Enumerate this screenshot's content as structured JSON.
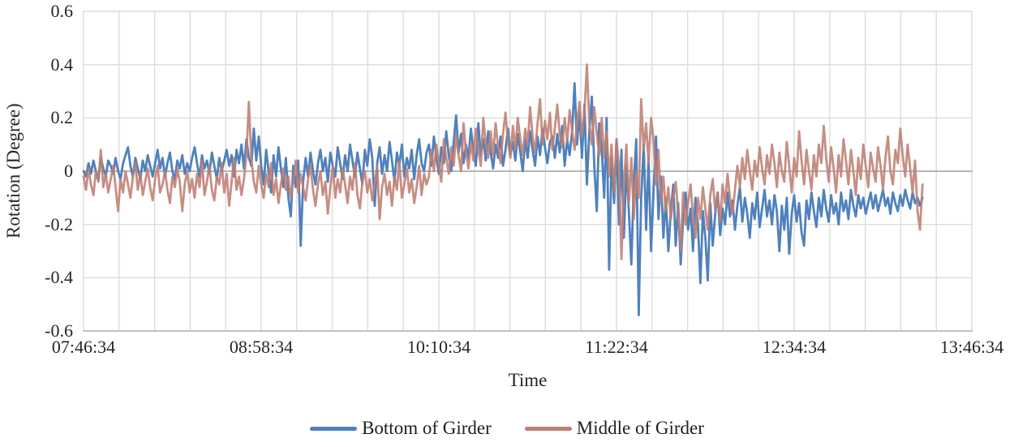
{
  "chart_data": {
    "type": "line",
    "title": "",
    "xlabel": "Time",
    "ylabel": "Rotation (Degree)",
    "x_axis": {
      "tick_labels": [
        "07:46:34",
        "08:58:34",
        "10:10:34",
        "11:22:34",
        "12:34:34",
        "13:46:34"
      ],
      "total_minutes": 360,
      "major_minutes": 72,
      "minor_minutes": 14.4
    },
    "y_axis": {
      "min": -0.6,
      "max": 0.6,
      "step": 0.2,
      "tick_labels": [
        "0.6",
        "0.4",
        "0.2",
        "0",
        "-0.2",
        "-0.4",
        "-0.6"
      ]
    },
    "grid": {
      "color": "#DCDCDC",
      "zero_color": "#ADADAD",
      "axis_color": "#C2C2C2"
    },
    "legend_position": "bottom",
    "x_step_minutes": 1,
    "series": [
      {
        "name": "Bottom of Girder",
        "color": "#4F81BD",
        "opacity": 1,
        "values": [
          0.0,
          -0.02,
          0.03,
          -0.01,
          0.04,
          0.0,
          -0.03,
          0.05,
          0.01,
          -0.02,
          0.04,
          0.02,
          -0.01,
          0.05,
          0.0,
          -0.03,
          0.03,
          0.06,
          0.09,
          0.02,
          -0.02,
          0.05,
          0.01,
          -0.03,
          0.04,
          0.0,
          0.06,
          0.02,
          -0.02,
          0.03,
          0.08,
          0.01,
          0.05,
          -0.02,
          0.03,
          0.07,
          0.0,
          -0.03,
          0.04,
          0.01,
          0.06,
          -0.01,
          0.03,
          0.0,
          0.05,
          0.09,
          0.03,
          -0.02,
          0.06,
          0.01,
          0.04,
          -0.01,
          0.07,
          0.02,
          -0.03,
          0.05,
          0.0,
          0.04,
          0.08,
          0.02,
          0.06,
          -0.02,
          0.08,
          0.03,
          0.1,
          0.01,
          0.12,
          0.05,
          0.02,
          0.16,
          0.04,
          0.13,
          0.02,
          -0.05,
          0.08,
          0.0,
          -0.08,
          0.06,
          -0.02,
          0.09,
          0.01,
          -0.06,
          0.05,
          -0.1,
          -0.17,
          0.02,
          -0.06,
          0.04,
          -0.28,
          -0.04,
          0.05,
          -0.02,
          0.07,
          0.0,
          -0.05,
          0.03,
          0.08,
          0.0,
          0.05,
          -0.04,
          0.07,
          0.02,
          -0.02,
          0.09,
          0.03,
          -0.03,
          0.06,
          0.0,
          0.1,
          0.04,
          -0.02,
          0.07,
          0.01,
          -0.05,
          0.08,
          0.02,
          0.12,
          0.05,
          -0.13,
          0.03,
          0.09,
          -0.01,
          0.06,
          0.0,
          0.11,
          0.04,
          -0.04,
          0.07,
          0.02,
          0.1,
          -0.02,
          0.05,
          0.01,
          0.08,
          -0.03,
          0.06,
          0.12,
          0.03,
          0.0,
          0.07,
          0.1,
          0.02,
          0.13,
          0.05,
          -0.01,
          0.09,
          0.03,
          0.15,
          0.06,
          0.0,
          0.11,
          0.21,
          0.07,
          0.14,
          0.03,
          0.1,
          0.05,
          0.16,
          0.08,
          0.02,
          0.18,
          0.06,
          0.12,
          0.04,
          0.15,
          0.07,
          0.01,
          0.1,
          0.05,
          0.13,
          0.02,
          0.08,
          0.16,
          0.06,
          0.11,
          0.04,
          0.14,
          0.07,
          0.0,
          0.12,
          0.05,
          0.15,
          0.08,
          0.02,
          0.13,
          0.06,
          0.16,
          0.09,
          0.03,
          0.11,
          0.13,
          0.05,
          0.14,
          0.07,
          0.17,
          0.02,
          0.12,
          0.06,
          0.15,
          0.33,
          0.1,
          0.22,
          0.05,
          0.25,
          -0.05,
          0.15,
          0.28,
          0.02,
          -0.15,
          0.18,
          0.08,
          -0.1,
          0.2,
          -0.37,
          0.05,
          -0.12,
          0.12,
          -0.2,
          0.08,
          -0.25,
          0.02,
          -0.15,
          -0.35,
          -0.05,
          0.12,
          -0.54,
          -0.1,
          0.1,
          -0.22,
          0.05,
          -0.3,
          -0.08,
          0.13,
          -0.18,
          -0.02,
          -0.25,
          -0.1,
          -0.3,
          -0.15,
          -0.05,
          -0.28,
          -0.12,
          -0.35,
          -0.18,
          -0.08,
          -0.22,
          -0.14,
          -0.3,
          -0.1,
          -0.2,
          -0.42,
          -0.15,
          -0.25,
          -0.41,
          -0.12,
          -0.28,
          -0.16,
          -0.08,
          -0.24,
          -0.14,
          -0.2,
          -0.08,
          -0.17,
          -0.11,
          -0.22,
          -0.13,
          -0.06,
          -0.19,
          -0.1,
          -0.16,
          -0.25,
          -0.12,
          -0.18,
          -0.08,
          -0.21,
          -0.14,
          -0.07,
          -0.17,
          -0.11,
          -0.2,
          -0.09,
          -0.15,
          -0.3,
          -0.13,
          -0.22,
          -0.1,
          -0.31,
          -0.16,
          -0.09,
          -0.19,
          -0.12,
          -0.23,
          -0.28,
          -0.11,
          -0.18,
          -0.08,
          -0.15,
          -0.21,
          -0.1,
          -0.17,
          -0.07,
          -0.14,
          -0.19,
          -0.09,
          -0.16,
          -0.12,
          -0.2,
          -0.08,
          -0.15,
          -0.11,
          -0.18,
          -0.07,
          -0.13,
          -0.17,
          -0.09,
          -0.14,
          -0.1,
          -0.16,
          -0.12,
          -0.08,
          -0.14,
          -0.09,
          -0.15,
          -0.11,
          -0.07,
          -0.13,
          -0.1,
          -0.16,
          -0.08,
          -0.12,
          -0.15,
          -0.09,
          -0.13,
          -0.07,
          -0.11,
          -0.14,
          -0.08,
          -0.12,
          -0.1,
          -0.13,
          -0.1
        ]
      },
      {
        "name": "Middle of Girder",
        "color": "#BE7E72",
        "opacity": 0.88,
        "values": [
          -0.02,
          -0.07,
          0.01,
          -0.05,
          -0.09,
          0.0,
          -0.04,
          0.08,
          -0.06,
          -0.01,
          -0.08,
          -0.03,
          0.02,
          -0.06,
          -0.15,
          -0.03,
          -0.08,
          0.0,
          -0.05,
          -0.1,
          -0.02,
          0.03,
          -0.07,
          -0.01,
          -0.09,
          -0.04,
          0.01,
          -0.06,
          -0.11,
          -0.03,
          0.02,
          -0.08,
          -0.05,
          0.0,
          -0.07,
          -0.12,
          -0.02,
          -0.06,
          0.01,
          -0.04,
          -0.15,
          -0.05,
          0.0,
          -0.08,
          -0.03,
          -0.1,
          -0.01,
          -0.06,
          0.04,
          -0.09,
          -0.04,
          0.02,
          -0.07,
          -0.11,
          -0.02,
          -0.05,
          0.03,
          -0.08,
          -0.01,
          -0.13,
          -0.04,
          0.05,
          -0.07,
          -0.02,
          -0.09,
          -0.03,
          0.06,
          0.26,
          0.05,
          -0.04,
          -0.08,
          0.02,
          -0.05,
          -0.1,
          -0.01,
          -0.06,
          0.03,
          -0.09,
          -0.03,
          -0.12,
          -0.05,
          0.01,
          -0.07,
          -0.02,
          -0.1,
          -0.04,
          0.04,
          -0.08,
          -0.01,
          -0.06,
          -0.11,
          -0.03,
          0.02,
          -0.07,
          -0.13,
          -0.05,
          0.0,
          -0.09,
          -0.04,
          -0.16,
          -0.06,
          0.02,
          -0.1,
          -0.03,
          -0.08,
          0.01,
          -0.05,
          -0.12,
          -0.02,
          -0.07,
          0.03,
          -0.09,
          -0.14,
          -0.04,
          0.0,
          -0.08,
          -0.03,
          -0.11,
          -0.05,
          0.02,
          -0.18,
          -0.06,
          -0.01,
          -0.09,
          -0.04,
          -0.13,
          -0.02,
          -0.07,
          0.04,
          -0.1,
          -0.05,
          0.01,
          -0.08,
          -0.03,
          -0.12,
          -0.06,
          0.02,
          -0.09,
          -0.01,
          -0.05,
          -0.02,
          0.08,
          0.0,
          0.1,
          0.03,
          -0.04,
          0.12,
          0.05,
          -0.01,
          0.09,
          0.02,
          0.14,
          0.06,
          0.0,
          0.18,
          0.07,
          0.01,
          0.11,
          0.04,
          0.16,
          0.08,
          0.02,
          0.2,
          0.1,
          0.05,
          0.15,
          0.06,
          0.18,
          0.09,
          0.03,
          0.14,
          0.22,
          0.11,
          0.05,
          0.17,
          0.08,
          0.2,
          0.12,
          0.06,
          0.16,
          0.1,
          0.24,
          0.13,
          0.07,
          0.18,
          0.27,
          0.1,
          0.19,
          0.12,
          0.22,
          0.08,
          0.16,
          0.25,
          0.14,
          0.09,
          0.2,
          0.11,
          0.23,
          0.15,
          0.08,
          0.18,
          0.26,
          0.13,
          0.22,
          0.4,
          0.18,
          0.1,
          0.24,
          0.14,
          0.06,
          0.2,
          0.05,
          0.15,
          -0.02,
          0.1,
          -0.08,
          0.12,
          0.02,
          -0.33,
          -0.05,
          0.1,
          -0.12,
          0.05,
          -0.18,
          0.0,
          -0.1,
          0.27,
          0.08,
          0.18,
          0.03,
          0.2,
          0.12,
          -0.05,
          0.08,
          -0.12,
          -0.02,
          -0.15,
          -0.06,
          -0.18,
          -0.1,
          -0.04,
          -0.16,
          -0.3,
          -0.08,
          -0.2,
          -0.12,
          -0.05,
          -0.17,
          -0.25,
          -0.1,
          -0.18,
          -0.06,
          -0.14,
          -0.22,
          -0.09,
          -0.03,
          -0.15,
          -0.08,
          -0.19,
          -0.05,
          -0.12,
          -0.01,
          -0.1,
          -0.16,
          -0.07,
          0.02,
          -0.06,
          0.05,
          -0.03,
          0.08,
          0.0,
          -0.07,
          0.04,
          -0.02,
          0.09,
          0.01,
          -0.05,
          0.06,
          -0.01,
          0.1,
          0.03,
          -0.06,
          0.07,
          0.0,
          -0.04,
          0.11,
          0.02,
          -0.08,
          0.05,
          -0.02,
          0.15,
          0.04,
          -0.05,
          0.08,
          0.0,
          -0.07,
          0.06,
          -0.02,
          0.1,
          0.03,
          0.17,
          0.05,
          -0.04,
          0.09,
          0.01,
          -0.08,
          0.06,
          -0.02,
          0.12,
          0.04,
          -0.05,
          0.08,
          0.0,
          -0.09,
          0.05,
          -0.03,
          0.1,
          0.02,
          -0.06,
          0.07,
          0.01,
          -0.04,
          0.09,
          0.02,
          -0.07,
          0.05,
          0.13,
          0.0,
          -0.05,
          0.08,
          0.03,
          0.16,
          0.06,
          -0.02,
          0.1,
          0.01,
          -0.08,
          0.04,
          -0.15,
          -0.22,
          -0.05
        ]
      }
    ]
  }
}
